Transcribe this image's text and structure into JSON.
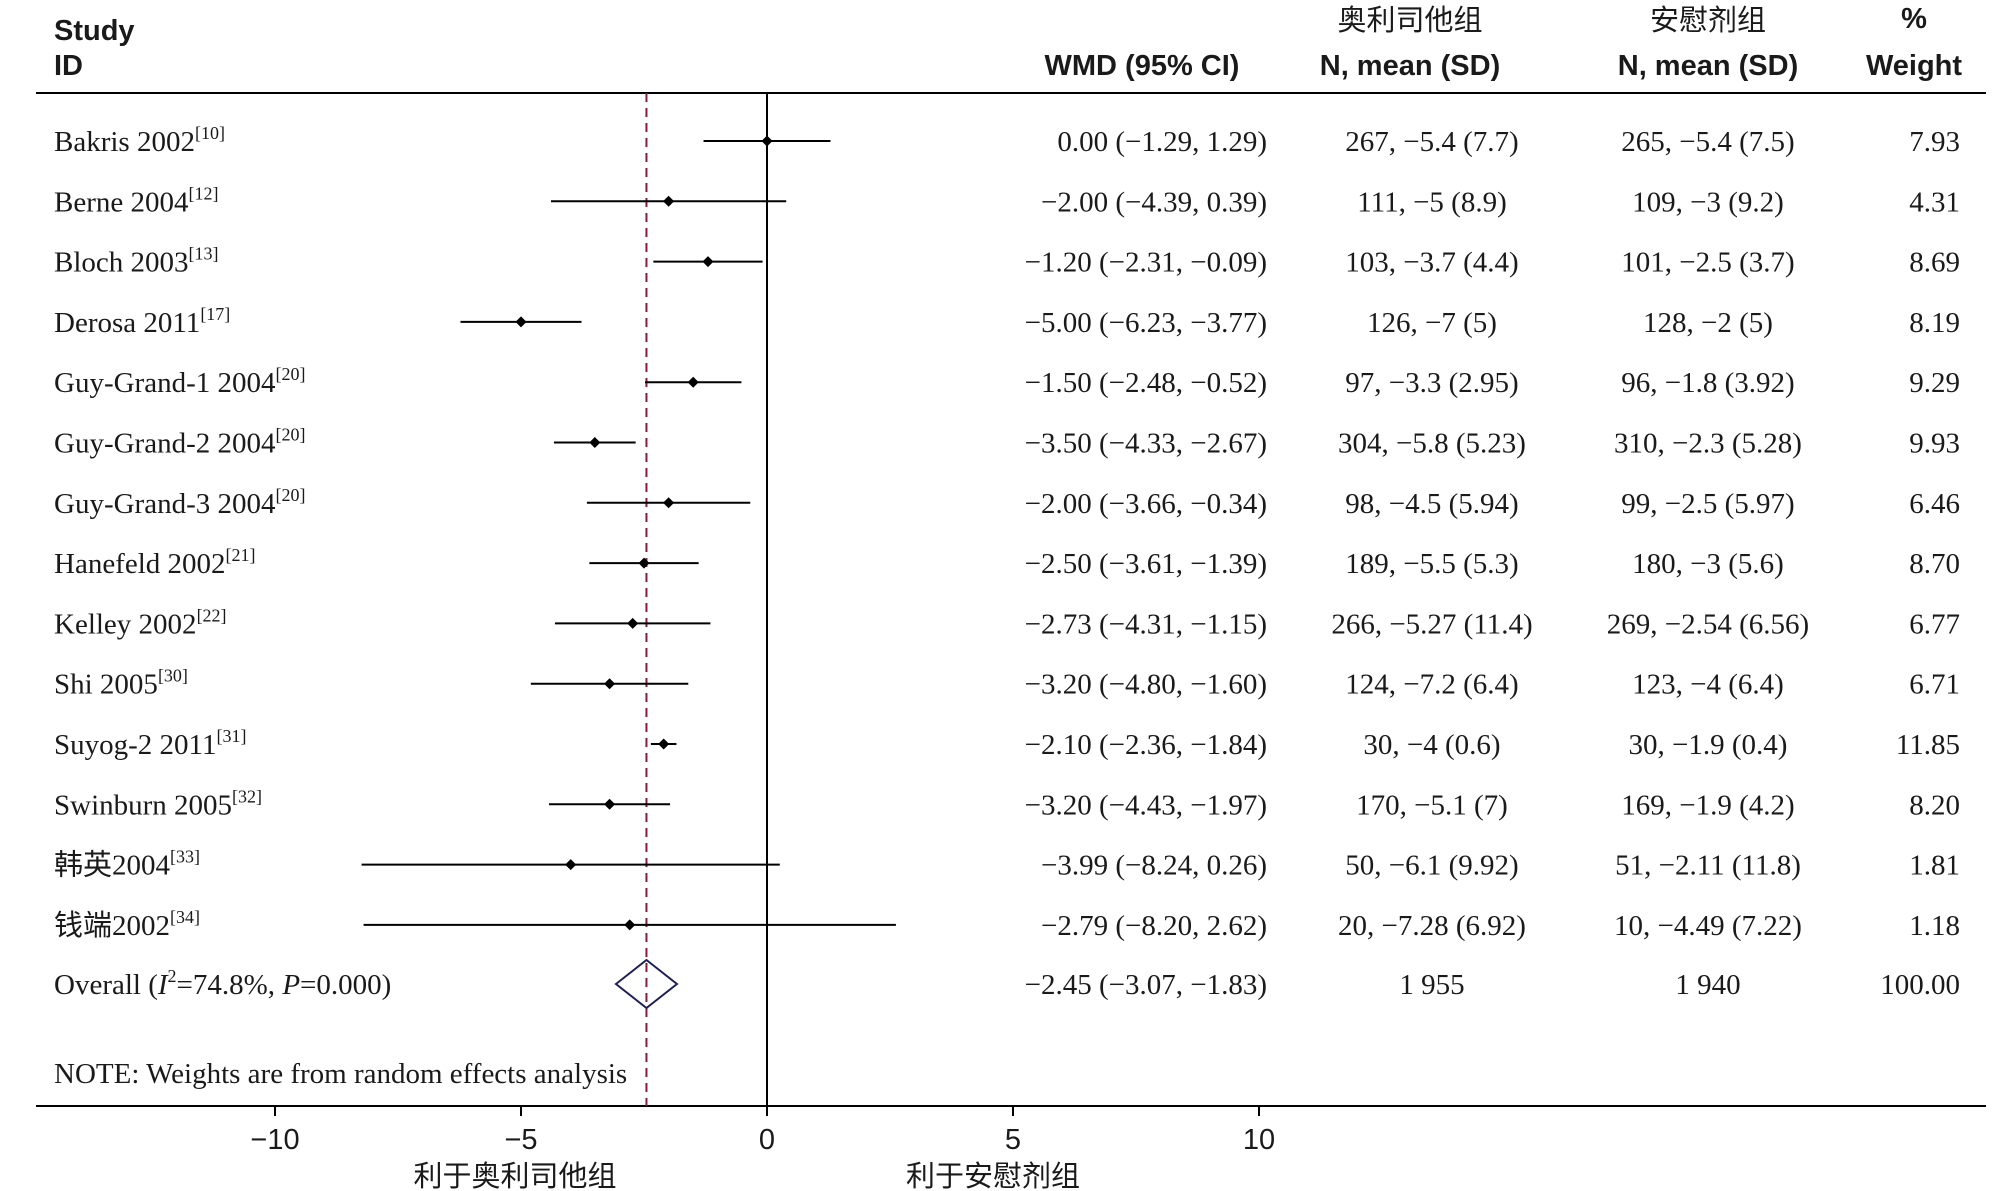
{
  "chart_data": {
    "type": "forest",
    "header": {
      "study": "Study",
      "id": "ID",
      "wmd": "WMD (95% CI)",
      "group1_name": "奥利司他组",
      "group1_sub": "N, mean (SD)",
      "group2_name": "安慰剂组",
      "group2_sub": "N, mean (SD)",
      "weight_top": "%",
      "weight_bottom": "Weight"
    },
    "studies": [
      {
        "name": "Bakris 2002",
        "ref": "[10]",
        "est": 0.0,
        "lo": -1.29,
        "hi": 1.29,
        "ci": "0.00 (−1.29, 1.29)",
        "g1": "267, −5.4 (7.7)",
        "g2": "265, −5.4 (7.5)",
        "weight": "7.93"
      },
      {
        "name": "Berne 2004",
        "ref": "[12]",
        "est": -2.0,
        "lo": -4.39,
        "hi": 0.39,
        "ci": "−2.00 (−4.39, 0.39)",
        "g1": "111, −5 (8.9)",
        "g2": "109, −3 (9.2)",
        "weight": "4.31"
      },
      {
        "name": "Bloch 2003",
        "ref": "[13]",
        "est": -1.2,
        "lo": -2.31,
        "hi": -0.09,
        "ci": "−1.20 (−2.31, −0.09)",
        "g1": "103, −3.7 (4.4)",
        "g2": "101, −2.5 (3.7)",
        "weight": "8.69"
      },
      {
        "name": "Derosa 2011",
        "ref": "[17]",
        "est": -5.0,
        "lo": -6.23,
        "hi": -3.77,
        "ci": "−5.00 (−6.23, −3.77)",
        "g1": "126, −7 (5)",
        "g2": "128, −2 (5)",
        "weight": "8.19"
      },
      {
        "name": "Guy-Grand-1 2004",
        "ref": "[20]",
        "est": -1.5,
        "lo": -2.48,
        "hi": -0.52,
        "ci": "−1.50 (−2.48, −0.52)",
        "g1": "97, −3.3 (2.95)",
        "g2": "96, −1.8 (3.92)",
        "weight": "9.29"
      },
      {
        "name": "Guy-Grand-2 2004",
        "ref": "[20]",
        "est": -3.5,
        "lo": -4.33,
        "hi": -2.67,
        "ci": "−3.50 (−4.33, −2.67)",
        "g1": "304, −5.8 (5.23)",
        "g2": "310, −2.3 (5.28)",
        "weight": "9.93"
      },
      {
        "name": "Guy-Grand-3 2004",
        "ref": "[20]",
        "est": -2.0,
        "lo": -3.66,
        "hi": -0.34,
        "ci": "−2.00 (−3.66, −0.34)",
        "g1": "98, −4.5 (5.94)",
        "g2": "99, −2.5 (5.97)",
        "weight": "6.46"
      },
      {
        "name": "Hanefeld 2002",
        "ref": "[21]",
        "est": -2.5,
        "lo": -3.61,
        "hi": -1.39,
        "ci": "−2.50 (−3.61, −1.39)",
        "g1": "189, −5.5 (5.3)",
        "g2": "180, −3 (5.6)",
        "weight": "8.70"
      },
      {
        "name": "Kelley 2002",
        "ref": "[22]",
        "est": -2.73,
        "lo": -4.31,
        "hi": -1.15,
        "ci": "−2.73 (−4.31, −1.15)",
        "g1": "266, −5.27 (11.4)",
        "g2": "269, −2.54 (6.56)",
        "weight": "6.77"
      },
      {
        "name": "Shi 2005",
        "ref": "[30]",
        "est": -3.2,
        "lo": -4.8,
        "hi": -1.6,
        "ci": "−3.20 (−4.80, −1.60)",
        "g1": "124, −7.2 (6.4)",
        "g2": "123, −4 (6.4)",
        "weight": "6.71"
      },
      {
        "name": "Suyog-2 2011",
        "ref": "[31]",
        "est": -2.1,
        "lo": -2.36,
        "hi": -1.84,
        "ci": "−2.10 (−2.36, −1.84)",
        "g1": "30, −4 (0.6)",
        "g2": "30, −1.9 (0.4)",
        "weight": "11.85"
      },
      {
        "name": "Swinburn 2005",
        "ref": "[32]",
        "est": -3.2,
        "lo": -4.43,
        "hi": -1.97,
        "ci": "−3.20 (−4.43, −1.97)",
        "g1": "170, −5.1 (7)",
        "g2": "169, −1.9 (4.2)",
        "weight": "8.20"
      },
      {
        "name": "韩英2004",
        "ref": "[33]",
        "est": -3.99,
        "lo": -8.24,
        "hi": 0.26,
        "ci": "−3.99 (−8.24, 0.26)",
        "g1": "50, −6.1 (9.92)",
        "g2": "51, −2.11 (11.8)",
        "weight": "1.81"
      },
      {
        "name": "钱端2002",
        "ref": "[34]",
        "est": -2.79,
        "lo": -8.2,
        "hi": 2.62,
        "ci": "−2.79 (−8.20, 2.62)",
        "g1": "20, −7.28 (6.92)",
        "g2": "10, −4.49 (7.22)",
        "weight": "1.18"
      }
    ],
    "overall": {
      "label_prefix": "Overall  (",
      "i2_symbol": "I",
      "i2_sup": "2",
      "i2_value": "=74.8%, ",
      "p_symbol": "P",
      "p_value": "=0.000)",
      "est": -2.45,
      "lo": -3.07,
      "hi": -1.83,
      "ci": "−2.45 (−3.07, −1.83)",
      "g1": "1 955",
      "g2": "1 940",
      "weight": "100.00"
    },
    "note": "NOTE: Weights are from random effects analysis",
    "x_axis": {
      "ticks": [
        -10,
        -5,
        0,
        5,
        10
      ],
      "tick_labels": [
        "−10",
        "−5",
        "0",
        "5",
        "10"
      ],
      "range": [
        -10,
        10
      ],
      "favors_left": "利于奥利司他组",
      "favors_right": "利于安慰剂组"
    },
    "colors": {
      "text": "#1a1a1a",
      "lines": "#000000",
      "overall_dashed": "#8b1a3a",
      "diamond": "#1f1f5c"
    }
  }
}
